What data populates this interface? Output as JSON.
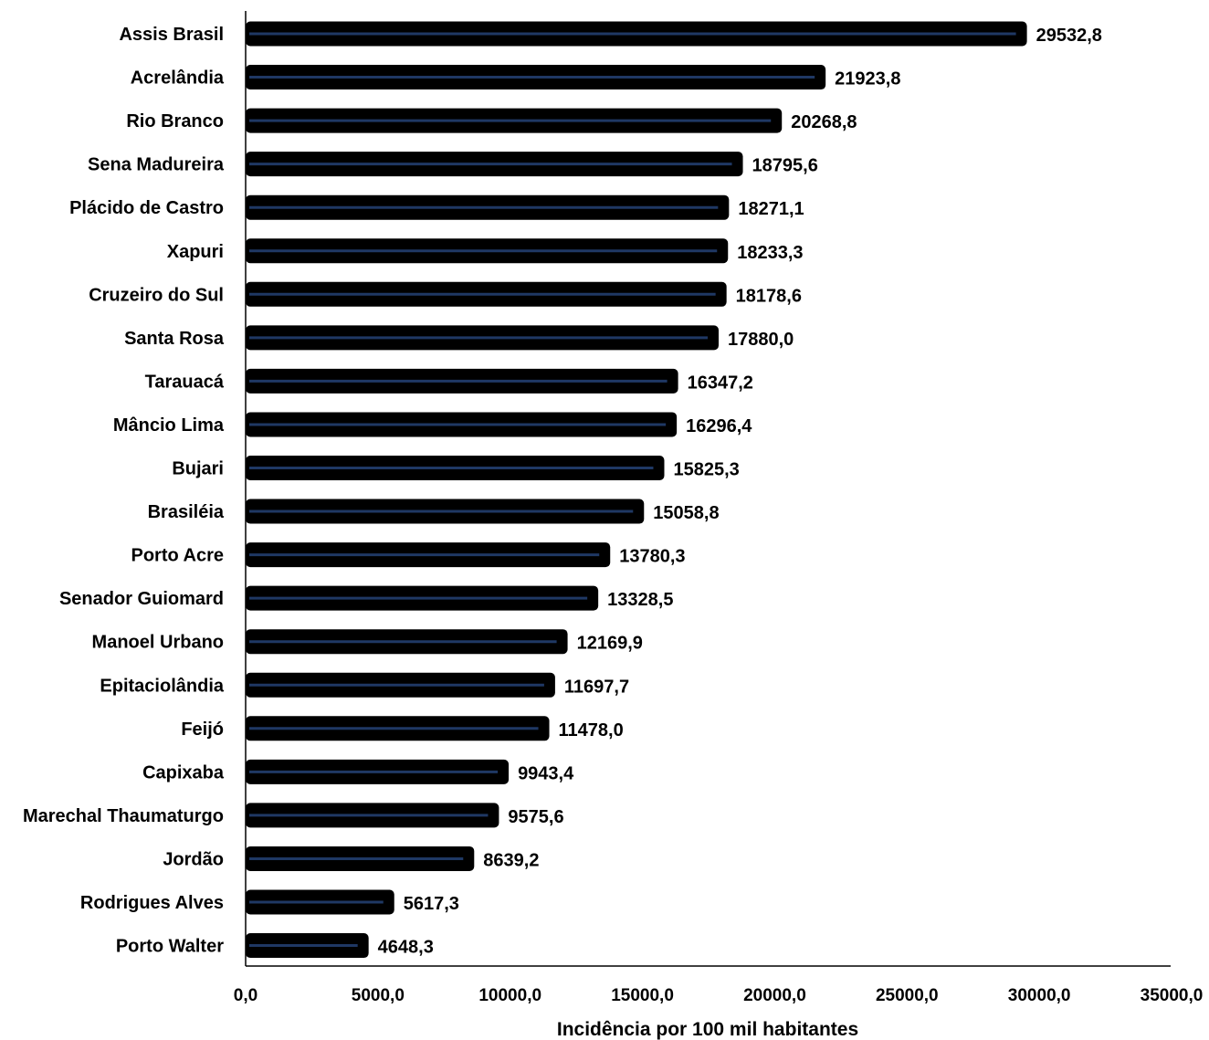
{
  "chart_data": {
    "type": "bar",
    "orientation": "horizontal",
    "categories": [
      "Assis Brasil",
      "Acrelândia",
      "Rio Branco",
      "Sena Madureira",
      "Plácido de Castro",
      "Xapuri",
      "Cruzeiro do Sul",
      "Santa Rosa",
      "Tarauacá",
      "Mâncio Lima",
      "Bujari",
      "Brasiléia",
      "Porto Acre",
      "Senador Guiomard",
      "Manoel Urbano",
      "Epitaciolândia",
      "Feijó",
      "Capixaba",
      "Marechal Thaumaturgo",
      "Jordão",
      "Rodrigues Alves",
      "Porto Walter"
    ],
    "values": [
      29532.8,
      21923.8,
      20268.8,
      18795.6,
      18271.1,
      18233.3,
      18178.6,
      17880.0,
      16347.2,
      16296.4,
      15825.3,
      15058.8,
      13780.3,
      13328.5,
      12169.9,
      11697.7,
      11478.0,
      9943.4,
      9575.6,
      8639.2,
      5617.3,
      4648.3
    ],
    "value_labels": [
      "29532,8",
      "21923,8",
      "20268,8",
      "18795,6",
      "18271,1",
      "18233,3",
      "18178,6",
      "17880,0",
      "16347,2",
      "16296,4",
      "15825,3",
      "15058,8",
      "13780,3",
      "13328,5",
      "12169,9",
      "11697,7",
      "11478,0",
      "9943,4",
      "9575,6",
      "8639,2",
      "5617,3",
      "4648,3"
    ],
    "xlim": [
      0,
      35000
    ],
    "x_ticks": [
      0,
      5000,
      10000,
      15000,
      20000,
      25000,
      30000,
      35000
    ],
    "x_tick_labels": [
      "0,0",
      "5000,0",
      "10000,0",
      "15000,0",
      "20000,0",
      "25000,0",
      "30000,0",
      "35000,0"
    ],
    "xlabel": "Incidência por 100 mil habitantes",
    "ylabel": "",
    "title": "",
    "grid": false,
    "colors": {
      "bar_fill": "#000000",
      "bar_inner_line": "#1f3864",
      "axis": "#000000"
    }
  }
}
